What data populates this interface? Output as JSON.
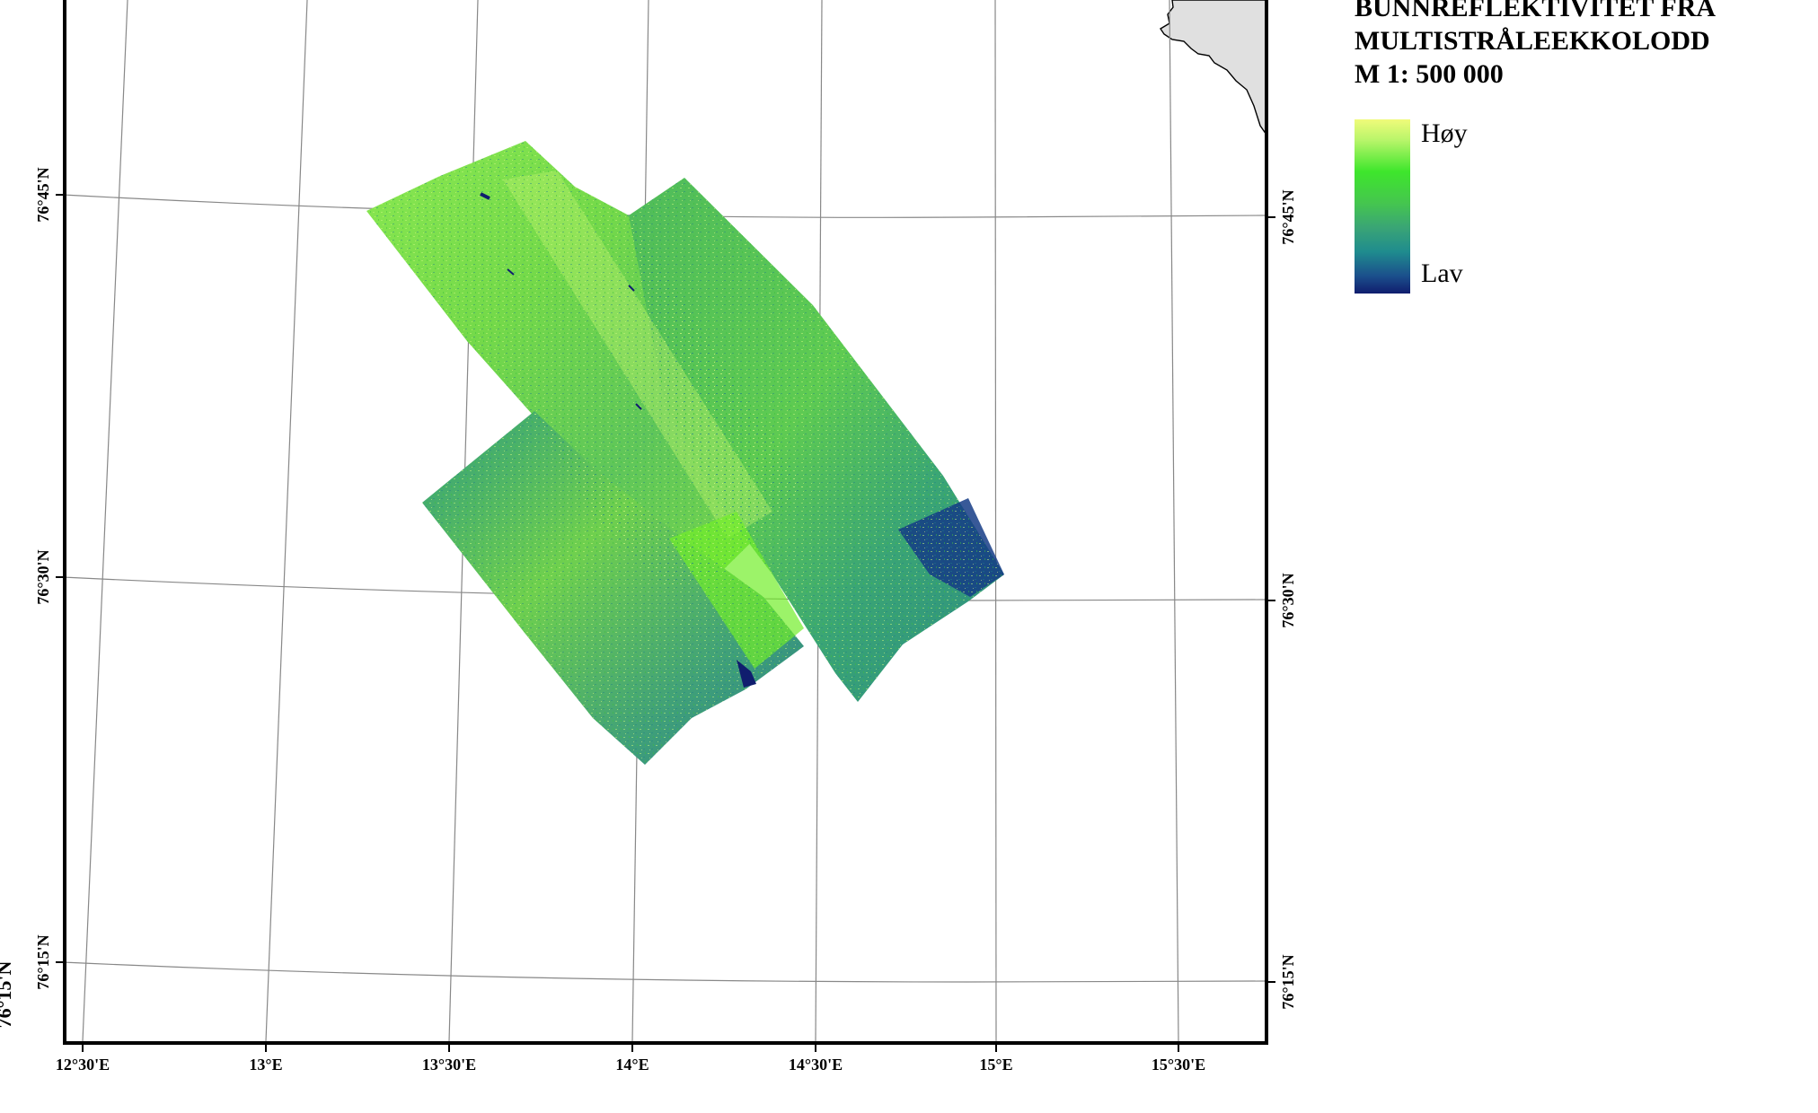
{
  "legend": {
    "title_lines": [
      "BUNNREFLEKTIVITET FRA",
      "MULTISTRÅLEEKKOLODD",
      "M 1: 500 000"
    ],
    "high_label": "Høy",
    "low_label": "Lav",
    "colors": [
      "#f0fb7a",
      "#3ee62c",
      "#3aa575",
      "#1f8c8e",
      "#101d6e"
    ]
  },
  "map": {
    "longitude_labels": [
      "12°30'E",
      "13°E",
      "13°30'E",
      "14°E",
      "14°30'E",
      "15°E",
      "15°30'E"
    ],
    "latitude_labels_left": [
      "76°45'N",
      "76°30'N",
      "76°15'N"
    ],
    "latitude_labels_right": [
      "76°45'N",
      "76°30'N",
      "76°15'N"
    ],
    "cut_off_label": "76°15'N",
    "layers": [
      "bathymetric-reflectivity-mosaic",
      "coastline-land"
    ]
  }
}
